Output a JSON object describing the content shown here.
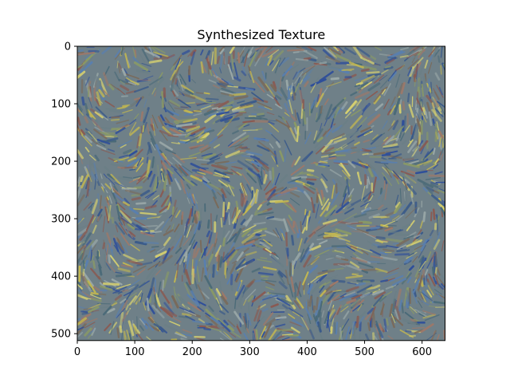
{
  "chart_data": {
    "type": "heatmap",
    "title": "Synthesized Texture",
    "xlabel": "",
    "ylabel": "",
    "xlim": [
      0,
      640
    ],
    "ylim": [
      512,
      0
    ],
    "x_ticks": [
      0,
      100,
      200,
      300,
      400,
      500,
      600
    ],
    "y_ticks": [
      0,
      100,
      200,
      300,
      400,
      500
    ],
    "grid": false,
    "palette": [
      "#6b7f86",
      "#8a9a66",
      "#c4b850",
      "#5a7fae",
      "#2f4f9a",
      "#8a5a52",
      "#9aa8a8",
      "#d6d070",
      "#4a6a78",
      "#7a6a5a",
      "#a07868",
      "#3a5a8a"
    ]
  }
}
